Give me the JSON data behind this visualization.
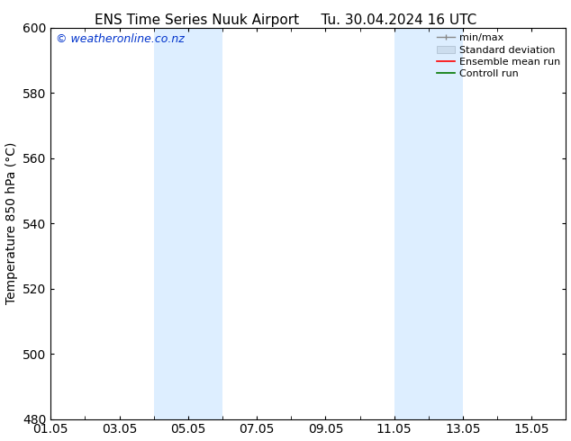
{
  "title_left": "ENS Time Series Nuuk Airport",
  "title_right": "Tu. 30.04.2024 16 UTC",
  "ylabel": "Temperature 850 hPa (°C)",
  "ylim": [
    480,
    600
  ],
  "yticks": [
    480,
    500,
    520,
    540,
    560,
    580,
    600
  ],
  "xtick_labels": [
    "01.05",
    "03.05",
    "05.05",
    "07.05",
    "09.05",
    "11.05",
    "13.05",
    "15.05"
  ],
  "xtick_positions": [
    0,
    2,
    4,
    6,
    8,
    10,
    12,
    14
  ],
  "xlim": [
    0,
    15
  ],
  "shaded_bands": [
    {
      "x_start": 3.0,
      "x_end": 5.0
    },
    {
      "x_start": 10.0,
      "x_end": 12.0
    }
  ],
  "shaded_color": "#ddeeff",
  "watermark_text": "© weatheronline.co.nz",
  "watermark_color": "#0033cc",
  "bg_color": "#ffffff",
  "axes_bg_color": "#ffffff",
  "legend_entries": [
    "min/max",
    "Standard deviation",
    "Ensemble mean run",
    "Controll run"
  ],
  "legend_line_colors": [
    "#999999",
    "#cccccc",
    "#ff0000",
    "#007700"
  ],
  "tick_color": "#000000",
  "font_size": 10,
  "title_font_size": 11,
  "legend_font_size": 8
}
